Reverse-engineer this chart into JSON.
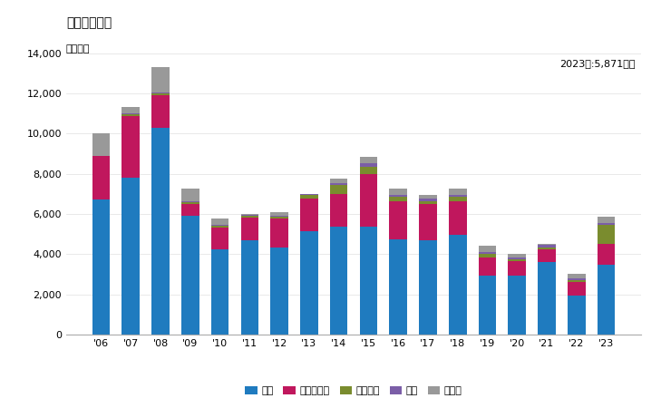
{
  "years": [
    "'06",
    "'07",
    "'08",
    "'09",
    "'10",
    "'11",
    "'12",
    "'13",
    "'14",
    "'15",
    "'16",
    "'17",
    "'18",
    "'19",
    "'20",
    "'21",
    "'22",
    "'23"
  ],
  "china": [
    6700,
    7800,
    10300,
    5900,
    4250,
    4700,
    4350,
    5150,
    5350,
    5350,
    4750,
    4700,
    4950,
    2950,
    2950,
    3600,
    1950,
    3450
  ],
  "philippines": [
    2200,
    3050,
    1600,
    600,
    1050,
    1100,
    1400,
    1600,
    1650,
    2650,
    1900,
    1800,
    1700,
    900,
    700,
    650,
    650,
    1050
  ],
  "vietnam": [
    0,
    100,
    100,
    100,
    100,
    100,
    100,
    200,
    450,
    350,
    200,
    150,
    200,
    150,
    100,
    100,
    100,
    950
  ],
  "thailand": [
    0,
    50,
    50,
    50,
    50,
    50,
    50,
    50,
    100,
    150,
    100,
    100,
    100,
    100,
    100,
    100,
    100,
    100
  ],
  "others": [
    1100,
    300,
    1250,
    600,
    300,
    50,
    200,
    0,
    200,
    350,
    300,
    200,
    300,
    300,
    150,
    50,
    200,
    320
  ],
  "colors": {
    "china": "#1f7bbf",
    "philippines": "#c0175d",
    "vietnam": "#7a8c2e",
    "thailand": "#7b5ea7",
    "others": "#999999"
  },
  "title": "輸入量の推移",
  "ylabel": "単位トン",
  "annotation": "2023年:5,871トン",
  "ylim": [
    0,
    14000
  ],
  "yticks": [
    0,
    2000,
    4000,
    6000,
    8000,
    10000,
    12000,
    14000
  ],
  "legend_labels": [
    "中国",
    "フィリピン",
    "ベトナム",
    "タイ",
    "その他"
  ]
}
